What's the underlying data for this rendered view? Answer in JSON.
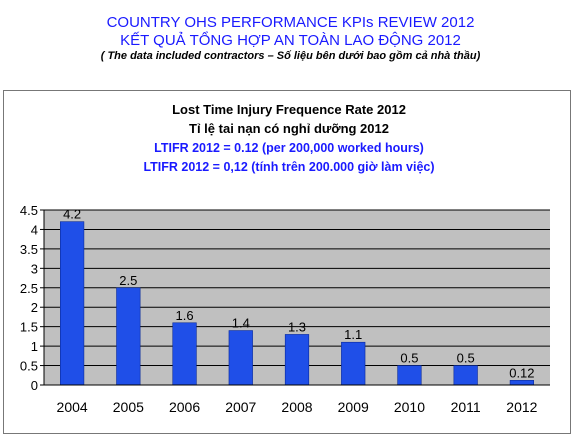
{
  "slide": {
    "title_line1": "COUNTRY  OHS PERFORMANCE KPIs REVIEW 2012",
    "title_line2": "KẾT QUẢ TỔNG HỢP AN TOÀN LAO ĐỘNG 2012",
    "subtitle": "( The data  included contractors – Số liệu bên dưới bao gồm cả nhà thầu)"
  },
  "chart_data": {
    "type": "bar",
    "title_lines": [
      "Lost Time Injury Frequence Rate 2012",
      "Tỉ lệ tai nạn có nghỉ dưỡng 2012"
    ],
    "annotations": [
      "LTIFR 2012 = 0.12 (per 200,000 worked hours)",
      "LTIFR 2012 = 0,12 (tính trên 200.000 giờ làm việc)"
    ],
    "categories": [
      "2004",
      "2005",
      "2006",
      "2007",
      "2008",
      "2009",
      "2010",
      "2011",
      "2012"
    ],
    "values": [
      4.2,
      2.5,
      1.6,
      1.4,
      1.3,
      1.1,
      0.5,
      0.5,
      0.12
    ],
    "data_labels": [
      "4.2",
      "2.5",
      "1.6",
      "1.4",
      "1.3",
      "1.1",
      "0.5",
      "0.5",
      "0.12"
    ],
    "yticks": [
      "0",
      "0.5",
      "1",
      "1.5",
      "2",
      "2.5",
      "3",
      "3.5",
      "4",
      "4.5"
    ],
    "ylim": [
      0,
      4.5
    ],
    "grid": true,
    "colors": {
      "bar": "#1f4fe8",
      "plot_bg": "#c0c0c0",
      "grid": "#000000",
      "title": "#000000",
      "annotation": "#1a1aff"
    }
  }
}
